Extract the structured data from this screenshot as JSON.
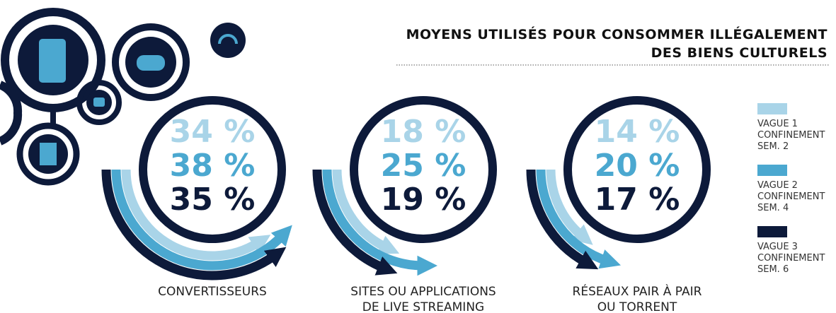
{
  "chart_data": {
    "type": "radial",
    "title": "MOYENS UTILISÉS POUR CONSOMMER ILLÉGALEMENT\nDES BIENS CULTURELS",
    "categories": [
      "CONVERTISSEURS",
      "SITES OU APPLICATIONS\nDE LIVE STREAMING",
      "RÉSEAUX PAIR À PAIR\nOU TORRENT"
    ],
    "series": [
      {
        "name": "VAGUE 1\nCONFINEMENT\nSEM. 2",
        "color": "#a9d4e8",
        "values": [
          34,
          18,
          14
        ],
        "value_labels": [
          "34 %",
          "18 %",
          "14 %"
        ]
      },
      {
        "name": "VAGUE 2\nCONFINEMENT\nSEM. 4",
        "color": "#4ba8d0",
        "values": [
          38,
          25,
          20
        ],
        "value_labels": [
          "38 %",
          "25 %",
          "20 %"
        ]
      },
      {
        "name": "VAGUE 3\nCONFINEMENT\nSEM. 6",
        "color": "#0d1a3a",
        "values": [
          35,
          19,
          17
        ],
        "value_labels": [
          "35 %",
          "19 %",
          "17 %"
        ]
      }
    ],
    "ylim": [
      0,
      100
    ]
  }
}
